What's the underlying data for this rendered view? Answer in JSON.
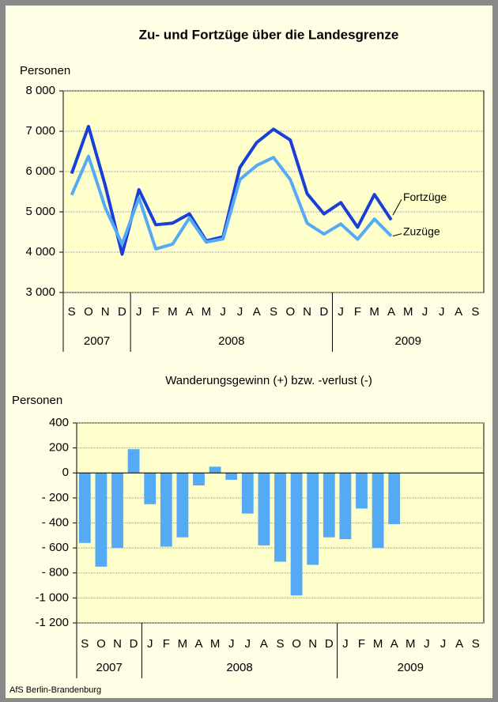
{
  "chart_data": [
    {
      "type": "line",
      "title": "Zu- und Fortzüge über die Landesgrenze",
      "y_label": "Personen",
      "categories": [
        "S",
        "O",
        "N",
        "D",
        "J",
        "F",
        "M",
        "A",
        "M",
        "J",
        "J",
        "A",
        "S",
        "O",
        "N",
        "D",
        "J",
        "F",
        "M",
        "A",
        "M",
        "J",
        "J",
        "A",
        "S"
      ],
      "groups": [
        {
          "label": "2007",
          "count": 4
        },
        {
          "label": "2008",
          "count": 12
        },
        {
          "label": "2009",
          "count": 9
        }
      ],
      "series": [
        {
          "name": "Fortzüge",
          "color": "#1a3fd9",
          "values": [
            5950,
            7120,
            5650,
            3950,
            5550,
            4680,
            4720,
            4950,
            4280,
            4380,
            6100,
            6720,
            7050,
            6780,
            5450,
            4950,
            5230,
            4620,
            5430,
            4800,
            null,
            null,
            null,
            null,
            null
          ]
        },
        {
          "name": "Zuzüge",
          "color": "#55aaf5",
          "values": [
            5420,
            6380,
            5100,
            4200,
            5350,
            4080,
            4200,
            4850,
            4250,
            4330,
            5800,
            6150,
            6350,
            5800,
            4720,
            4450,
            4700,
            4320,
            4820,
            4400,
            null,
            null,
            null,
            null,
            null
          ]
        }
      ],
      "ylim": [
        3000,
        8000
      ],
      "yticks": [
        {
          "value": 3000,
          "label": "3 000"
        },
        {
          "value": 4000,
          "label": "4 000"
        },
        {
          "value": 5000,
          "label": "5 000"
        },
        {
          "value": 6000,
          "label": "6 000"
        },
        {
          "value": 7000,
          "label": "7 000"
        },
        {
          "value": 8000,
          "label": "8 000"
        }
      ],
      "grid": true
    },
    {
      "type": "bar",
      "title": "Wanderungsgewinn (+) bzw. -verlust (-)",
      "y_label": "Personen",
      "categories": [
        "S",
        "O",
        "N",
        "D",
        "J",
        "F",
        "M",
        "A",
        "M",
        "J",
        "J",
        "A",
        "S",
        "O",
        "N",
        "D",
        "J",
        "F",
        "M",
        "A",
        "M",
        "J",
        "J",
        "A",
        "S"
      ],
      "groups": [
        {
          "label": "2007",
          "count": 4
        },
        {
          "label": "2008",
          "count": 12
        },
        {
          "label": "2009",
          "count": 9
        }
      ],
      "values": [
        -560,
        -750,
        -600,
        190,
        -250,
        -590,
        -515,
        -100,
        50,
        -55,
        -325,
        -580,
        -710,
        -980,
        -735,
        -515,
        -530,
        -285,
        -600,
        -410,
        null,
        null,
        null,
        null,
        null
      ],
      "color": "#55aaf5",
      "ylim": [
        -1200,
        400
      ],
      "yticks": [
        {
          "value": -1200,
          "label": "-1 200"
        },
        {
          "value": -1000,
          "label": "-1 000"
        },
        {
          "value": -800,
          "label": "- 800"
        },
        {
          "value": -600,
          "label": "- 600"
        },
        {
          "value": -400,
          "label": "- 400"
        },
        {
          "value": -200,
          "label": "- 200"
        },
        0,
        200,
        400
      ],
      "grid": true
    }
  ],
  "source": "AfS Berlin-Brandenburg"
}
